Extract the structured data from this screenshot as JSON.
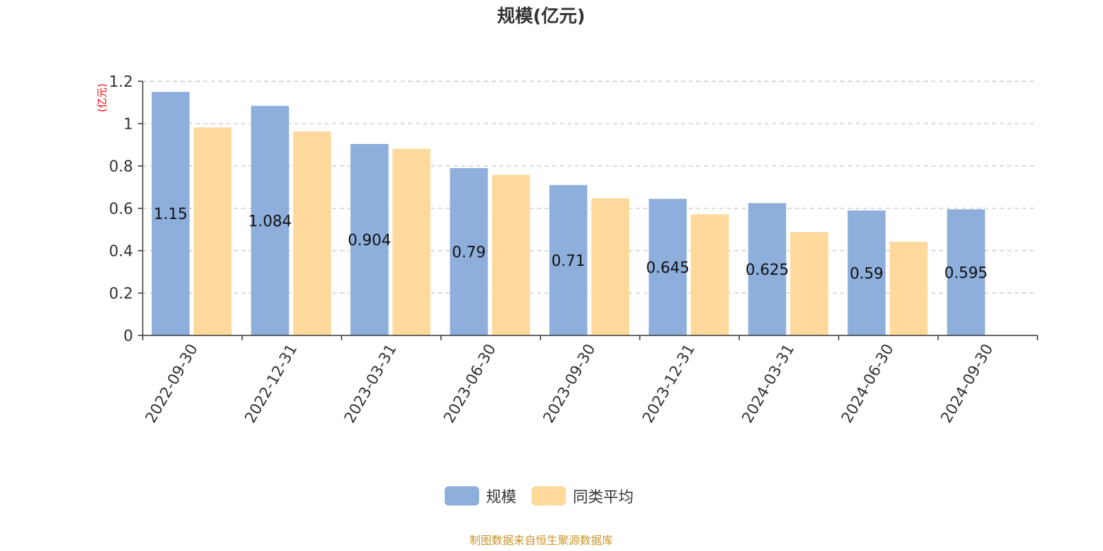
{
  "chart_data": {
    "type": "bar",
    "title": "规模(亿元)",
    "ylabel": "(亿元)",
    "xlabel": "",
    "ylim": [
      0,
      1.2
    ],
    "yticks": [
      "0",
      "0.2",
      "0.4",
      "0.6",
      "0.8",
      "1",
      "1.2"
    ],
    "grid": true,
    "legend_position": "bottom",
    "categories": [
      "2022-09-30",
      "2022-12-31",
      "2023-03-31",
      "2023-06-30",
      "2023-09-30",
      "2023-12-31",
      "2024-03-31",
      "2024-06-30",
      "2024-09-30"
    ],
    "series": [
      {
        "name": "规模",
        "color": "#8eaedb",
        "values": [
          1.15,
          1.084,
          0.904,
          0.79,
          0.71,
          0.645,
          0.625,
          0.59,
          0.595
        ],
        "labels": [
          "1.15",
          "1.084",
          "0.904",
          "0.79",
          "0.71",
          "0.645",
          "0.625",
          "0.59",
          "0.595"
        ]
      },
      {
        "name": "同类平均",
        "color": "#ffd99b",
        "values": [
          0.982,
          0.963,
          0.881,
          0.758,
          0.647,
          0.572,
          0.488,
          0.442,
          null
        ]
      }
    ]
  },
  "footer": {
    "source": "制图数据来自恒生聚源数据库",
    "color": "#c8962a"
  },
  "colors": {
    "ylabel": "#ff0000",
    "axis": "#333333",
    "grid": "#cccccc"
  }
}
